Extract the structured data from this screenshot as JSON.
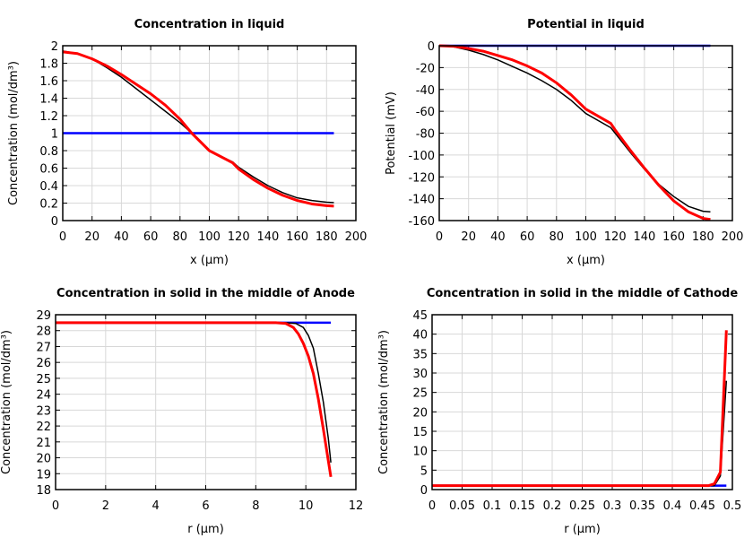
{
  "chart_data": [
    {
      "type": "line",
      "title": "Concentration in liquid",
      "xlabel": "x (µm)",
      "ylabel": "Concentration (mol/dm³)",
      "xlim": [
        0,
        200
      ],
      "ylim": [
        0,
        2
      ],
      "xticks": [
        0,
        20,
        40,
        60,
        80,
        100,
        120,
        140,
        160,
        180,
        200
      ],
      "yticks": [
        0,
        0.2,
        0.4,
        0.6,
        0.8,
        1,
        1.2,
        1.4,
        1.6,
        1.8,
        2
      ],
      "grid": true,
      "series": [
        {
          "color": "#0000ff",
          "x": [
            0,
            185
          ],
          "y": [
            1,
            1
          ]
        },
        {
          "color": "#000000",
          "x": [
            0,
            10,
            20,
            30,
            40,
            50,
            60,
            70,
            80,
            88,
            100,
            116,
            120,
            130,
            140,
            150,
            160,
            170,
            180,
            185
          ],
          "y": [
            1.94,
            1.91,
            1.85,
            1.75,
            1.64,
            1.51,
            1.38,
            1.25,
            1.12,
            1.0,
            0.8,
            0.67,
            0.61,
            0.5,
            0.4,
            0.32,
            0.26,
            0.23,
            0.21,
            0.205
          ]
        },
        {
          "color": "#ff0000",
          "x": [
            0,
            10,
            20,
            30,
            40,
            50,
            60,
            70,
            80,
            88,
            100,
            116,
            120,
            130,
            140,
            150,
            160,
            170,
            180,
            185
          ],
          "y": [
            1.93,
            1.91,
            1.85,
            1.77,
            1.67,
            1.56,
            1.45,
            1.32,
            1.16,
            1.0,
            0.8,
            0.66,
            0.59,
            0.47,
            0.37,
            0.29,
            0.23,
            0.19,
            0.17,
            0.165
          ]
        }
      ]
    },
    {
      "type": "line",
      "title": "Potential in liquid",
      "xlabel": "x (µm)",
      "ylabel": "Potential (mV)",
      "xlim": [
        0,
        200
      ],
      "ylim": [
        -160,
        0
      ],
      "xticks": [
        0,
        20,
        40,
        60,
        80,
        100,
        120,
        140,
        160,
        180,
        200
      ],
      "yticks": [
        -160,
        -140,
        -120,
        -100,
        -80,
        -60,
        -40,
        -20,
        0
      ],
      "grid": true,
      "series": [
        {
          "color": "#0000ff",
          "x": [
            0,
            185
          ],
          "y": [
            0,
            0
          ]
        },
        {
          "color": "#000000",
          "x": [
            0,
            10,
            20,
            30,
            40,
            50,
            60,
            70,
            80,
            90,
            100,
            117,
            120,
            130,
            140,
            150,
            160,
            170,
            180,
            185
          ],
          "y": [
            0,
            -1,
            -4,
            -8,
            -13,
            -19,
            -25,
            -32,
            -40,
            -50,
            -62,
            -75,
            -80,
            -97,
            -113,
            -127,
            -138,
            -147,
            -151.5,
            -152
          ]
        },
        {
          "color": "#ff0000",
          "x": [
            0,
            10,
            20,
            30,
            40,
            50,
            60,
            70,
            80,
            90,
            100,
            117,
            120,
            130,
            140,
            150,
            160,
            170,
            180,
            185
          ],
          "y": [
            0,
            -0.5,
            -2.5,
            -5,
            -9,
            -13,
            -18.5,
            -25,
            -34,
            -45,
            -58,
            -71,
            -77,
            -95,
            -112,
            -128,
            -142,
            -152,
            -158,
            -159
          ]
        }
      ]
    },
    {
      "type": "line",
      "title": "Concentration in solid in the middle of Anode",
      "xlabel": "r (µm)",
      "ylabel": "Concentration (mol/dm³)",
      "xlim": [
        0,
        12
      ],
      "ylim": [
        18,
        29
      ],
      "xticks": [
        0,
        2,
        4,
        6,
        8,
        10,
        12
      ],
      "yticks": [
        18,
        19,
        20,
        21,
        22,
        23,
        24,
        25,
        26,
        27,
        28,
        29
      ],
      "grid": true,
      "series": [
        {
          "color": "#0000ff",
          "x": [
            0,
            11
          ],
          "y": [
            28.5,
            28.5
          ]
        },
        {
          "color": "#000000",
          "x": [
            0,
            9.2,
            9.6,
            9.9,
            10.1,
            10.3,
            10.5,
            10.7,
            10.9,
            11
          ],
          "y": [
            28.5,
            28.5,
            28.45,
            28.2,
            27.7,
            26.9,
            25.3,
            23.5,
            21.2,
            19.7
          ]
        },
        {
          "color": "#ff0000",
          "x": [
            0,
            8.8,
            9.2,
            9.5,
            9.7,
            9.9,
            10.1,
            10.3,
            10.5,
            10.7,
            10.9,
            11
          ],
          "y": [
            28.5,
            28.5,
            28.45,
            28.2,
            27.8,
            27.2,
            26.4,
            25.3,
            23.7,
            21.8,
            19.8,
            18.8
          ]
        }
      ]
    },
    {
      "type": "line",
      "title": "Concentration in solid in the middle of Cathode",
      "xlabel": "r (µm)",
      "ylabel": "Concentration (mol/dm³)",
      "xlim": [
        0,
        0.5
      ],
      "ylim": [
        0,
        45
      ],
      "xticks": [
        0,
        0.05,
        0.1,
        0.15,
        0.2,
        0.25,
        0.3,
        0.35,
        0.4,
        0.45,
        0.5
      ],
      "yticks": [
        0,
        5,
        10,
        15,
        20,
        25,
        30,
        35,
        40,
        45
      ],
      "grid": true,
      "series": [
        {
          "color": "#0000ff",
          "x": [
            0,
            0.49
          ],
          "y": [
            1,
            1
          ]
        },
        {
          "color": "#000000",
          "x": [
            0,
            0.47,
            0.48,
            0.49
          ],
          "y": [
            1,
            1,
            3.5,
            28
          ]
        },
        {
          "color": "#ff0000",
          "x": [
            0,
            0.46,
            0.47,
            0.48,
            0.49
          ],
          "y": [
            1,
            1,
            1.5,
            4.5,
            41
          ]
        }
      ]
    }
  ]
}
